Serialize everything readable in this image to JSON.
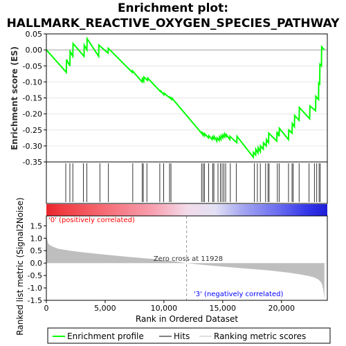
{
  "chart_data": {
    "title_line1": "Enrichment plot:",
    "title_line2": "HALLMARK_REACTIVE_OXYGEN_SPECIES_PATHWAY",
    "type": "line",
    "xlabel": "Rank in Ordered Dataset",
    "es_panel": {
      "ylabel": "Enrichment score (ES)",
      "ylim": [
        -0.35,
        0.05
      ],
      "yticks": [
        "0.05",
        "0.00",
        "-0.05",
        "-0.10",
        "-0.15",
        "-0.20",
        "-0.25",
        "-0.30",
        "-0.35"
      ],
      "ytick_values": [
        0.05,
        0.0,
        -0.05,
        -0.1,
        -0.15,
        -0.2,
        -0.25,
        -0.3,
        -0.35
      ],
      "series": [
        {
          "name": "Enrichment profile",
          "color": "#00ff00",
          "x": [
            0,
            1700,
            1720,
            2000,
            2020,
            2250,
            2270,
            3200,
            3220,
            3450,
            3470,
            4450,
            4470,
            5250,
            5270,
            7300,
            7320,
            8150,
            8170,
            8280,
            8300,
            8600,
            8620,
            9700,
            9720,
            10000,
            10020,
            10500,
            10520,
            10650,
            10670,
            13200,
            13220,
            13300,
            13320,
            13450,
            13470,
            13800,
            13820,
            14100,
            14120,
            14250,
            14270,
            14500,
            14520,
            14700,
            14720,
            14850,
            14870,
            15000,
            15020,
            15150,
            15170,
            15300,
            15320,
            15600,
            15620,
            16200,
            16220,
            17600,
            17620,
            17800,
            17820,
            18000,
            18020,
            18200,
            18220,
            18450,
            18470,
            18700,
            18720,
            18900,
            18920,
            19600,
            19620,
            19800,
            19820,
            20600,
            20620,
            20900,
            20920,
            21100,
            21120,
            21500,
            21520,
            22400,
            22420,
            22900,
            22920,
            23150,
            23170,
            23250,
            23270,
            23400,
            23420,
            23650
          ],
          "y": [
            0.0,
            -0.07,
            -0.03,
            -0.05,
            -0.005,
            -0.02,
            0.02,
            -0.02,
            0.015,
            0.0,
            0.035,
            -0.02,
            0.015,
            -0.01,
            0.005,
            -0.07,
            -0.065,
            -0.1,
            -0.09,
            -0.098,
            -0.085,
            -0.095,
            -0.088,
            -0.13,
            -0.128,
            -0.14,
            -0.135,
            -0.15,
            -0.148,
            -0.155,
            -0.15,
            -0.26,
            -0.258,
            -0.265,
            -0.26,
            -0.268,
            -0.262,
            -0.275,
            -0.268,
            -0.28,
            -0.272,
            -0.278,
            -0.27,
            -0.285,
            -0.275,
            -0.283,
            -0.272,
            -0.28,
            -0.268,
            -0.275,
            -0.265,
            -0.272,
            -0.262,
            -0.27,
            -0.265,
            -0.28,
            -0.27,
            -0.29,
            -0.27,
            -0.335,
            -0.32,
            -0.328,
            -0.31,
            -0.322,
            -0.305,
            -0.318,
            -0.3,
            -0.31,
            -0.29,
            -0.3,
            -0.28,
            -0.29,
            -0.26,
            -0.285,
            -0.255,
            -0.27,
            -0.245,
            -0.28,
            -0.25,
            -0.26,
            -0.23,
            -0.24,
            -0.205,
            -0.22,
            -0.18,
            -0.215,
            -0.175,
            -0.19,
            -0.145,
            -0.155,
            -0.1,
            -0.11,
            -0.045,
            -0.05,
            0.01,
            0.0
          ]
        }
      ]
    },
    "hits": [
      1650,
      2000,
      2250,
      3150,
      3450,
      4550,
      5280,
      7350,
      8150,
      8250,
      8550,
      9650,
      9980,
      10480,
      10600,
      13200,
      13330,
      13450,
      13800,
      14150,
      14250,
      14600,
      14800,
      14950,
      15100,
      15250,
      15650,
      16150,
      17700,
      17950,
      18200,
      18650,
      18850,
      18950,
      19650,
      19800,
      20600,
      20900,
      21000,
      21500,
      22350,
      22800,
      23000,
      23200,
      23300
    ],
    "metric_panel": {
      "ylabel": "Ranked list metric (Signal2Noise)",
      "ylim": [
        -1.5,
        1.9
      ],
      "yticks": [
        "1.5",
        "1.0",
        "0.5",
        "0.0",
        "-0.5",
        "-1.0",
        "-1.5"
      ],
      "ytick_values": [
        1.5,
        1.0,
        0.5,
        0.0,
        -0.5,
        -1.0,
        -1.5
      ],
      "curve_x": [
        0,
        50,
        150,
        300,
        600,
        1000,
        2000,
        3000,
        5000,
        7000,
        9000,
        11000,
        11928,
        13000,
        15000,
        17000,
        19000,
        20500,
        21500,
        22300,
        22800,
        23100,
        23300,
        23450,
        23550,
        23650
      ],
      "curve_y": [
        1.35,
        1.0,
        0.8,
        0.72,
        0.65,
        0.58,
        0.5,
        0.44,
        0.34,
        0.25,
        0.17,
        0.07,
        0.0,
        -0.06,
        -0.14,
        -0.22,
        -0.3,
        -0.38,
        -0.45,
        -0.52,
        -0.58,
        -0.65,
        -0.73,
        -0.85,
        -1.05,
        -1.45
      ],
      "fill_color": "#bebebe"
    },
    "xlim": [
      0,
      23900
    ],
    "xticks": [
      "0",
      "5,000",
      "10,000",
      "15,000",
      "20,000"
    ],
    "xtick_values": [
      0,
      5000,
      10000,
      15000,
      20000
    ],
    "zero_cross_rank": 11928,
    "zero_cross_label": "Zero cross at 11928",
    "positive_label": "'0' (positively correlated)",
    "negative_label": "'3' (negatively correlated)",
    "positive_color": "#ff0000",
    "negative_color": "#0000ff",
    "legend": [
      {
        "label": "Enrichment profile",
        "color": "#00ff00"
      },
      {
        "label": "Hits",
        "color": "#000000"
      },
      {
        "label": "Ranking metric scores",
        "color": "#bebebe"
      }
    ],
    "legend_position": "bottom"
  }
}
